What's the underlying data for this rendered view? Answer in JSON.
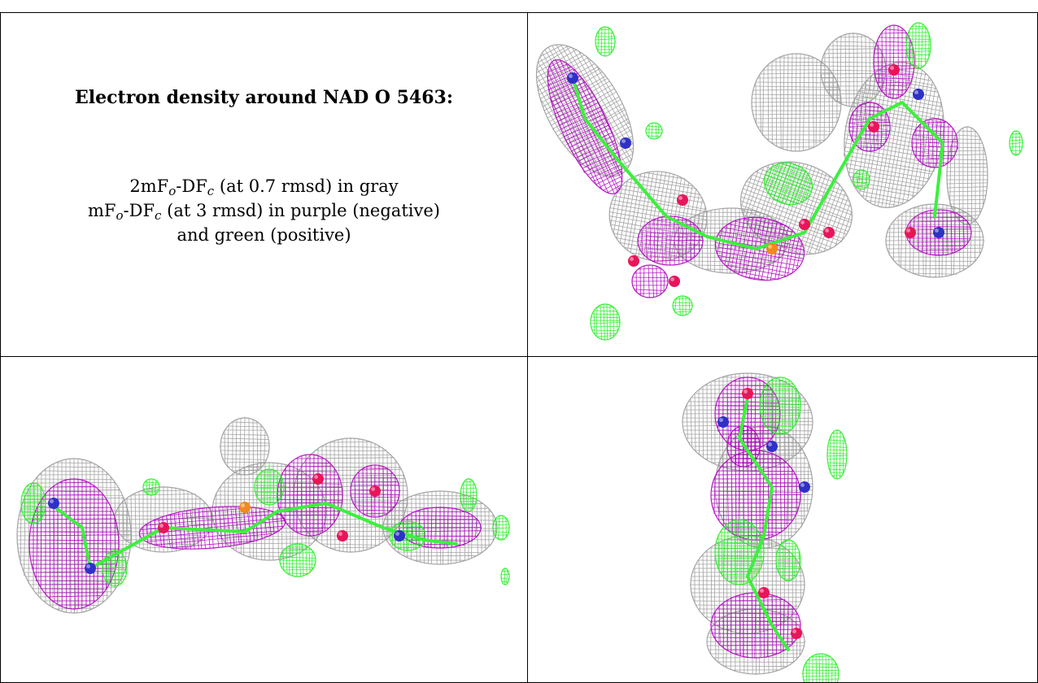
{
  "title": "Electron density around NAD O 5463:",
  "legend": {
    "line1": {
      "prefix": "2mF",
      "sub1": "o",
      "mid": "-DF",
      "sub2": "c",
      "suffix": " (at 0.7 rmsd) in gray"
    },
    "line2": {
      "prefix": "mF",
      "sub1": "o",
      "mid": "-DF",
      "sub2": "c",
      "suffix": " (at 3 rmsd) in purple (negative)"
    },
    "line3": "and green (positive)"
  },
  "colors": {
    "gray_mesh": "#9a9a9a",
    "purple_mesh": "#b000c0",
    "green_mesh": "#22ee22",
    "oxygen": "#e8155a",
    "nitrogen": "#3030c8",
    "phosphorus": "#f08a20",
    "carbon": "#3cf03c"
  },
  "views": [
    {
      "name": "view-top-right",
      "icon": "electron-density-view-1"
    },
    {
      "name": "view-bottom-left",
      "icon": "electron-density-view-2"
    },
    {
      "name": "view-bottom-right",
      "icon": "electron-density-view-3"
    }
  ]
}
